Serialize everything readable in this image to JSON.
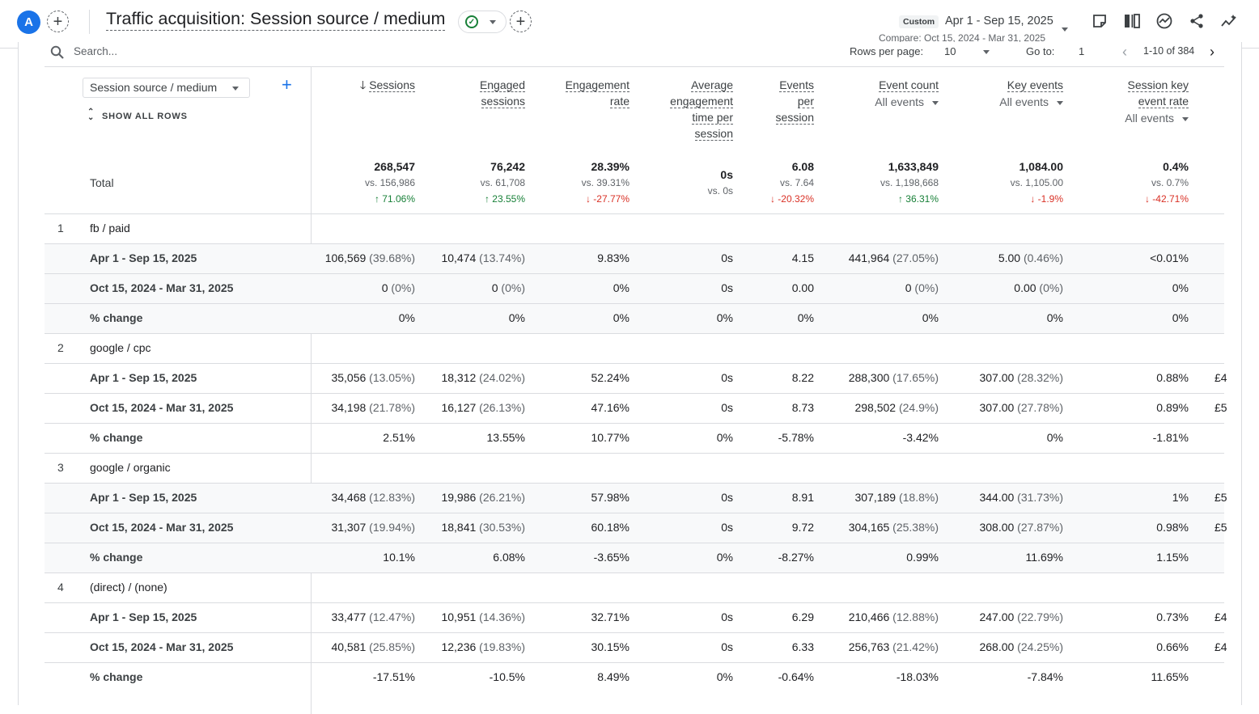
{
  "header": {
    "avatar": "A",
    "title": "Traffic acquisition: Session source / medium",
    "custom_badge": "Custom",
    "date_range": "Apr 1 - Sep 15, 2025",
    "compare": "Compare: Oct 15, 2024 - Mar 31, 2025"
  },
  "toolbar": {
    "search_placeholder": "Search...",
    "rows_per_page_label": "Rows per page:",
    "rows_per_page": "10",
    "goto_label": "Go to:",
    "goto_value": "1",
    "page_count": "1-10 of 384"
  },
  "table": {
    "dimension": "Session source / medium",
    "show_all_rows": "SHOW ALL ROWS",
    "total_label": "Total",
    "columns": [
      {
        "lines": [
          "Sessions"
        ],
        "sub": ""
      },
      {
        "lines": [
          "Engaged",
          "sessions"
        ],
        "sub": ""
      },
      {
        "lines": [
          "Engagement",
          "rate"
        ],
        "sub": ""
      },
      {
        "lines": [
          "Average",
          "engagement",
          "time per",
          "session"
        ],
        "sub": ""
      },
      {
        "lines": [
          "Events",
          "per",
          "session"
        ],
        "sub": ""
      },
      {
        "lines": [
          "Event count"
        ],
        "sub": "All events"
      },
      {
        "lines": [
          "Key events"
        ],
        "sub": "All events"
      },
      {
        "lines": [
          "Session key",
          "event rate"
        ],
        "sub": "All events"
      }
    ],
    "totals": [
      {
        "value": "268,547",
        "vs": "vs. 156,986",
        "change": "↑ 71.06%",
        "dir": "up"
      },
      {
        "value": "76,242",
        "vs": "vs. 61,708",
        "change": "↑ 23.55%",
        "dir": "up"
      },
      {
        "value": "28.39%",
        "vs": "vs. 39.31%",
        "change": "↓ -27.77%",
        "dir": "down"
      },
      {
        "value": "0s",
        "vs": "vs. 0s",
        "change": "",
        "dir": "none"
      },
      {
        "value": "6.08",
        "vs": "vs. 7.64",
        "change": "↓ -20.32%",
        "dir": "down"
      },
      {
        "value": "1,633,849",
        "vs": "vs. 1,198,668",
        "change": "↑ 36.31%",
        "dir": "up"
      },
      {
        "value": "1,084.00",
        "vs": "vs. 1,105.00",
        "change": "↓ -1.9%",
        "dir": "down"
      },
      {
        "value": "0.4%",
        "vs": "vs. 0.7%",
        "change": "↓ -42.71%",
        "dir": "down"
      }
    ],
    "groups": [
      {
        "index": "1",
        "name": "fb / paid",
        "shaded": true,
        "rows": [
          {
            "label": "Apr 1 - Sep 15, 2025",
            "cells": [
              [
                "106,569",
                " (39.68%)"
              ],
              [
                "10,474",
                " (13.74%)"
              ],
              [
                "9.83%",
                ""
              ],
              [
                "0s",
                ""
              ],
              [
                "4.15",
                ""
              ],
              [
                "441,964",
                " (27.05%)"
              ],
              [
                "5.00",
                " (0.46%)"
              ],
              [
                "<0.01%",
                ""
              ]
            ],
            "partial": ""
          },
          {
            "label": "Oct 15, 2024 - Mar 31, 2025",
            "cells": [
              [
                "0",
                " (0%)"
              ],
              [
                "0",
                " (0%)"
              ],
              [
                "0%",
                ""
              ],
              [
                "0s",
                ""
              ],
              [
                "0.00",
                ""
              ],
              [
                "0",
                " (0%)"
              ],
              [
                "0.00",
                " (0%)"
              ],
              [
                "0%",
                ""
              ]
            ],
            "partial": ""
          },
          {
            "label": "% change",
            "cells": [
              [
                "0%",
                ""
              ],
              [
                "0%",
                ""
              ],
              [
                "0%",
                ""
              ],
              [
                "0%",
                ""
              ],
              [
                "0%",
                ""
              ],
              [
                "0%",
                ""
              ],
              [
                "0%",
                ""
              ],
              [
                "0%",
                ""
              ]
            ],
            "partial": ""
          }
        ]
      },
      {
        "index": "2",
        "name": "google / cpc",
        "shaded": false,
        "rows": [
          {
            "label": "Apr 1 - Sep 15, 2025",
            "cells": [
              [
                "35,056",
                " (13.05%)"
              ],
              [
                "18,312",
                " (24.02%)"
              ],
              [
                "52.24%",
                ""
              ],
              [
                "0s",
                ""
              ],
              [
                "8.22",
                ""
              ],
              [
                "288,300",
                " (17.65%)"
              ],
              [
                "307.00",
                " (28.32%)"
              ],
              [
                "0.88%",
                ""
              ]
            ],
            "partial": "£4"
          },
          {
            "label": "Oct 15, 2024 - Mar 31, 2025",
            "cells": [
              [
                "34,198",
                " (21.78%)"
              ],
              [
                "16,127",
                " (26.13%)"
              ],
              [
                "47.16%",
                ""
              ],
              [
                "0s",
                ""
              ],
              [
                "8.73",
                ""
              ],
              [
                "298,502",
                " (24.9%)"
              ],
              [
                "307.00",
                " (27.78%)"
              ],
              [
                "0.89%",
                ""
              ]
            ],
            "partial": "£5"
          },
          {
            "label": "% change",
            "cells": [
              [
                "2.51%",
                ""
              ],
              [
                "13.55%",
                ""
              ],
              [
                "10.77%",
                ""
              ],
              [
                "0%",
                ""
              ],
              [
                "-5.78%",
                ""
              ],
              [
                "-3.42%",
                ""
              ],
              [
                "0%",
                ""
              ],
              [
                "-1.81%",
                ""
              ]
            ],
            "partial": ""
          }
        ]
      },
      {
        "index": "3",
        "name": "google / organic",
        "shaded": true,
        "rows": [
          {
            "label": "Apr 1 - Sep 15, 2025",
            "cells": [
              [
                "34,468",
                " (12.83%)"
              ],
              [
                "19,986",
                " (26.21%)"
              ],
              [
                "57.98%",
                ""
              ],
              [
                "0s",
                ""
              ],
              [
                "8.91",
                ""
              ],
              [
                "307,189",
                " (18.8%)"
              ],
              [
                "344.00",
                " (31.73%)"
              ],
              [
                "1%",
                ""
              ]
            ],
            "partial": "£5"
          },
          {
            "label": "Oct 15, 2024 - Mar 31, 2025",
            "cells": [
              [
                "31,307",
                " (19.94%)"
              ],
              [
                "18,841",
                " (30.53%)"
              ],
              [
                "60.18%",
                ""
              ],
              [
                "0s",
                ""
              ],
              [
                "9.72",
                ""
              ],
              [
                "304,165",
                " (25.38%)"
              ],
              [
                "308.00",
                " (27.87%)"
              ],
              [
                "0.98%",
                ""
              ]
            ],
            "partial": "£5"
          },
          {
            "label": "% change",
            "cells": [
              [
                "10.1%",
                ""
              ],
              [
                "6.08%",
                ""
              ],
              [
                "-3.65%",
                ""
              ],
              [
                "0%",
                ""
              ],
              [
                "-8.27%",
                ""
              ],
              [
                "0.99%",
                ""
              ],
              [
                "11.69%",
                ""
              ],
              [
                "1.15%",
                ""
              ]
            ],
            "partial": ""
          }
        ]
      },
      {
        "index": "4",
        "name": "(direct) / (none)",
        "shaded": false,
        "rows": [
          {
            "label": "Apr 1 - Sep 15, 2025",
            "cells": [
              [
                "33,477",
                " (12.47%)"
              ],
              [
                "10,951",
                " (14.36%)"
              ],
              [
                "32.71%",
                ""
              ],
              [
                "0s",
                ""
              ],
              [
                "6.29",
                ""
              ],
              [
                "210,466",
                " (12.88%)"
              ],
              [
                "247.00",
                " (22.79%)"
              ],
              [
                "0.73%",
                ""
              ]
            ],
            "partial": "£4"
          },
          {
            "label": "Oct 15, 2024 - Mar 31, 2025",
            "cells": [
              [
                "40,581",
                " (25.85%)"
              ],
              [
                "12,236",
                " (19.83%)"
              ],
              [
                "30.15%",
                ""
              ],
              [
                "0s",
                ""
              ],
              [
                "6.33",
                ""
              ],
              [
                "256,763",
                " (21.42%)"
              ],
              [
                "268.00",
                " (24.25%)"
              ],
              [
                "0.66%",
                ""
              ]
            ],
            "partial": "£4"
          },
          {
            "label": "% change",
            "cells": [
              [
                "-17.51%",
                ""
              ],
              [
                "-10.5%",
                ""
              ],
              [
                "8.49%",
                ""
              ],
              [
                "0%",
                ""
              ],
              [
                "-0.64%",
                ""
              ],
              [
                "-18.03%",
                ""
              ],
              [
                "-7.84%",
                ""
              ],
              [
                "11.65%",
                ""
              ]
            ],
            "partial": ""
          }
        ]
      }
    ]
  }
}
